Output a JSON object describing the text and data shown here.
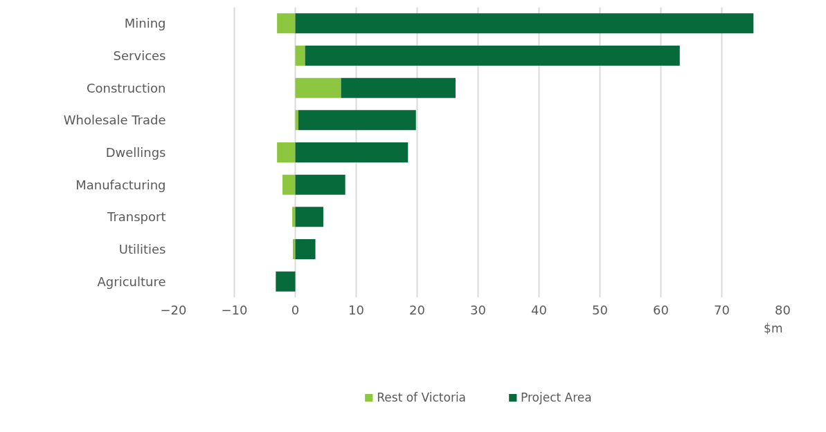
{
  "chart_data": {
    "type": "bar",
    "orientation": "horizontal",
    "stacked": true,
    "xlabel": "$m",
    "categories": [
      "Mining",
      "Services",
      "Construction",
      "Wholesale Trade",
      "Dwellings",
      "Manufacturing",
      "Transport",
      "Utilities",
      "Agriculture"
    ],
    "series": [
      {
        "name": "Rest of Victoria",
        "color": "#8dc63f",
        "values": [
          -3.0,
          1.6,
          7.5,
          0.5,
          -3.0,
          -2.1,
          -0.5,
          -0.4,
          0
        ]
      },
      {
        "name": "Project Area",
        "color": "#076a3b",
        "values": [
          75.2,
          61.5,
          18.8,
          19.3,
          18.5,
          8.2,
          4.6,
          3.3,
          -3.2
        ]
      }
    ],
    "xlim": [
      -20,
      80
    ],
    "xticks": [
      -20,
      -10,
      0,
      10,
      20,
      30,
      40,
      50,
      60,
      70,
      80
    ],
    "grid": "x",
    "legend": "bottom"
  }
}
